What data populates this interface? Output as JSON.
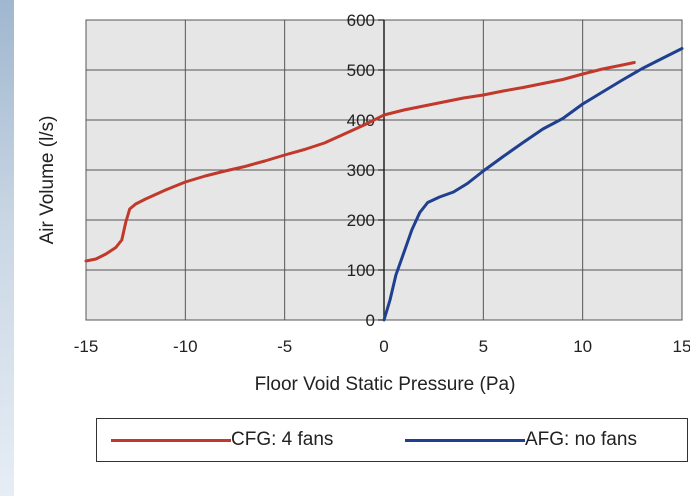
{
  "chart_data": {
    "type": "line",
    "xlabel": "Floor Void Static Pressure (Pa)",
    "ylabel": "Air Volume (l/s)",
    "xlim": [
      -15,
      15
    ],
    "ylim": [
      0,
      600
    ],
    "xticks": [
      -15,
      -10,
      -5,
      0,
      5,
      10,
      15
    ],
    "yticks": [
      0,
      100,
      200,
      300,
      400,
      500,
      600
    ],
    "xtick_labels": [
      "-15",
      "-10",
      "-5",
      "0",
      "5",
      "10",
      "15"
    ],
    "ytick_labels": [
      "0",
      "100",
      "200",
      "300",
      "400",
      "500",
      "600"
    ],
    "grid": true,
    "legend": "bottom",
    "series": [
      {
        "name": "CFG: 4 fans",
        "color": "#c0392b",
        "points": [
          [
            -15,
            118
          ],
          [
            -14.5,
            122
          ],
          [
            -14,
            132
          ],
          [
            -13.5,
            145
          ],
          [
            -13.2,
            160
          ],
          [
            -13,
            195
          ],
          [
            -12.8,
            222
          ],
          [
            -12.5,
            232
          ],
          [
            -12,
            242
          ],
          [
            -11,
            260
          ],
          [
            -10,
            276
          ],
          [
            -9,
            288
          ],
          [
            -8,
            298
          ],
          [
            -7,
            307
          ],
          [
            -6,
            318
          ],
          [
            -5,
            330
          ],
          [
            -4,
            341
          ],
          [
            -3,
            354
          ],
          [
            -2,
            372
          ],
          [
            -1,
            390
          ],
          [
            0,
            410
          ],
          [
            1,
            420
          ],
          [
            2,
            428
          ],
          [
            3,
            436
          ],
          [
            4,
            444
          ],
          [
            5,
            450
          ],
          [
            6,
            458
          ],
          [
            7,
            465
          ],
          [
            8,
            473
          ],
          [
            9,
            481
          ],
          [
            10,
            492
          ],
          [
            11,
            502
          ],
          [
            12,
            510
          ],
          [
            12.6,
            515
          ]
        ]
      },
      {
        "name": "AFG: no fans",
        "color": "#1f3f8f",
        "points": [
          [
            0,
            0
          ],
          [
            0.3,
            40
          ],
          [
            0.6,
            90
          ],
          [
            1,
            135
          ],
          [
            1.4,
            180
          ],
          [
            1.8,
            215
          ],
          [
            2.2,
            235
          ],
          [
            2.8,
            246
          ],
          [
            3.5,
            256
          ],
          [
            4.2,
            273
          ],
          [
            5,
            298
          ],
          [
            6,
            327
          ],
          [
            7,
            355
          ],
          [
            8,
            382
          ],
          [
            9,
            403
          ],
          [
            10,
            432
          ],
          [
            11,
            456
          ],
          [
            12,
            480
          ],
          [
            13,
            503
          ],
          [
            14,
            523
          ],
          [
            15,
            543
          ]
        ]
      }
    ]
  }
}
